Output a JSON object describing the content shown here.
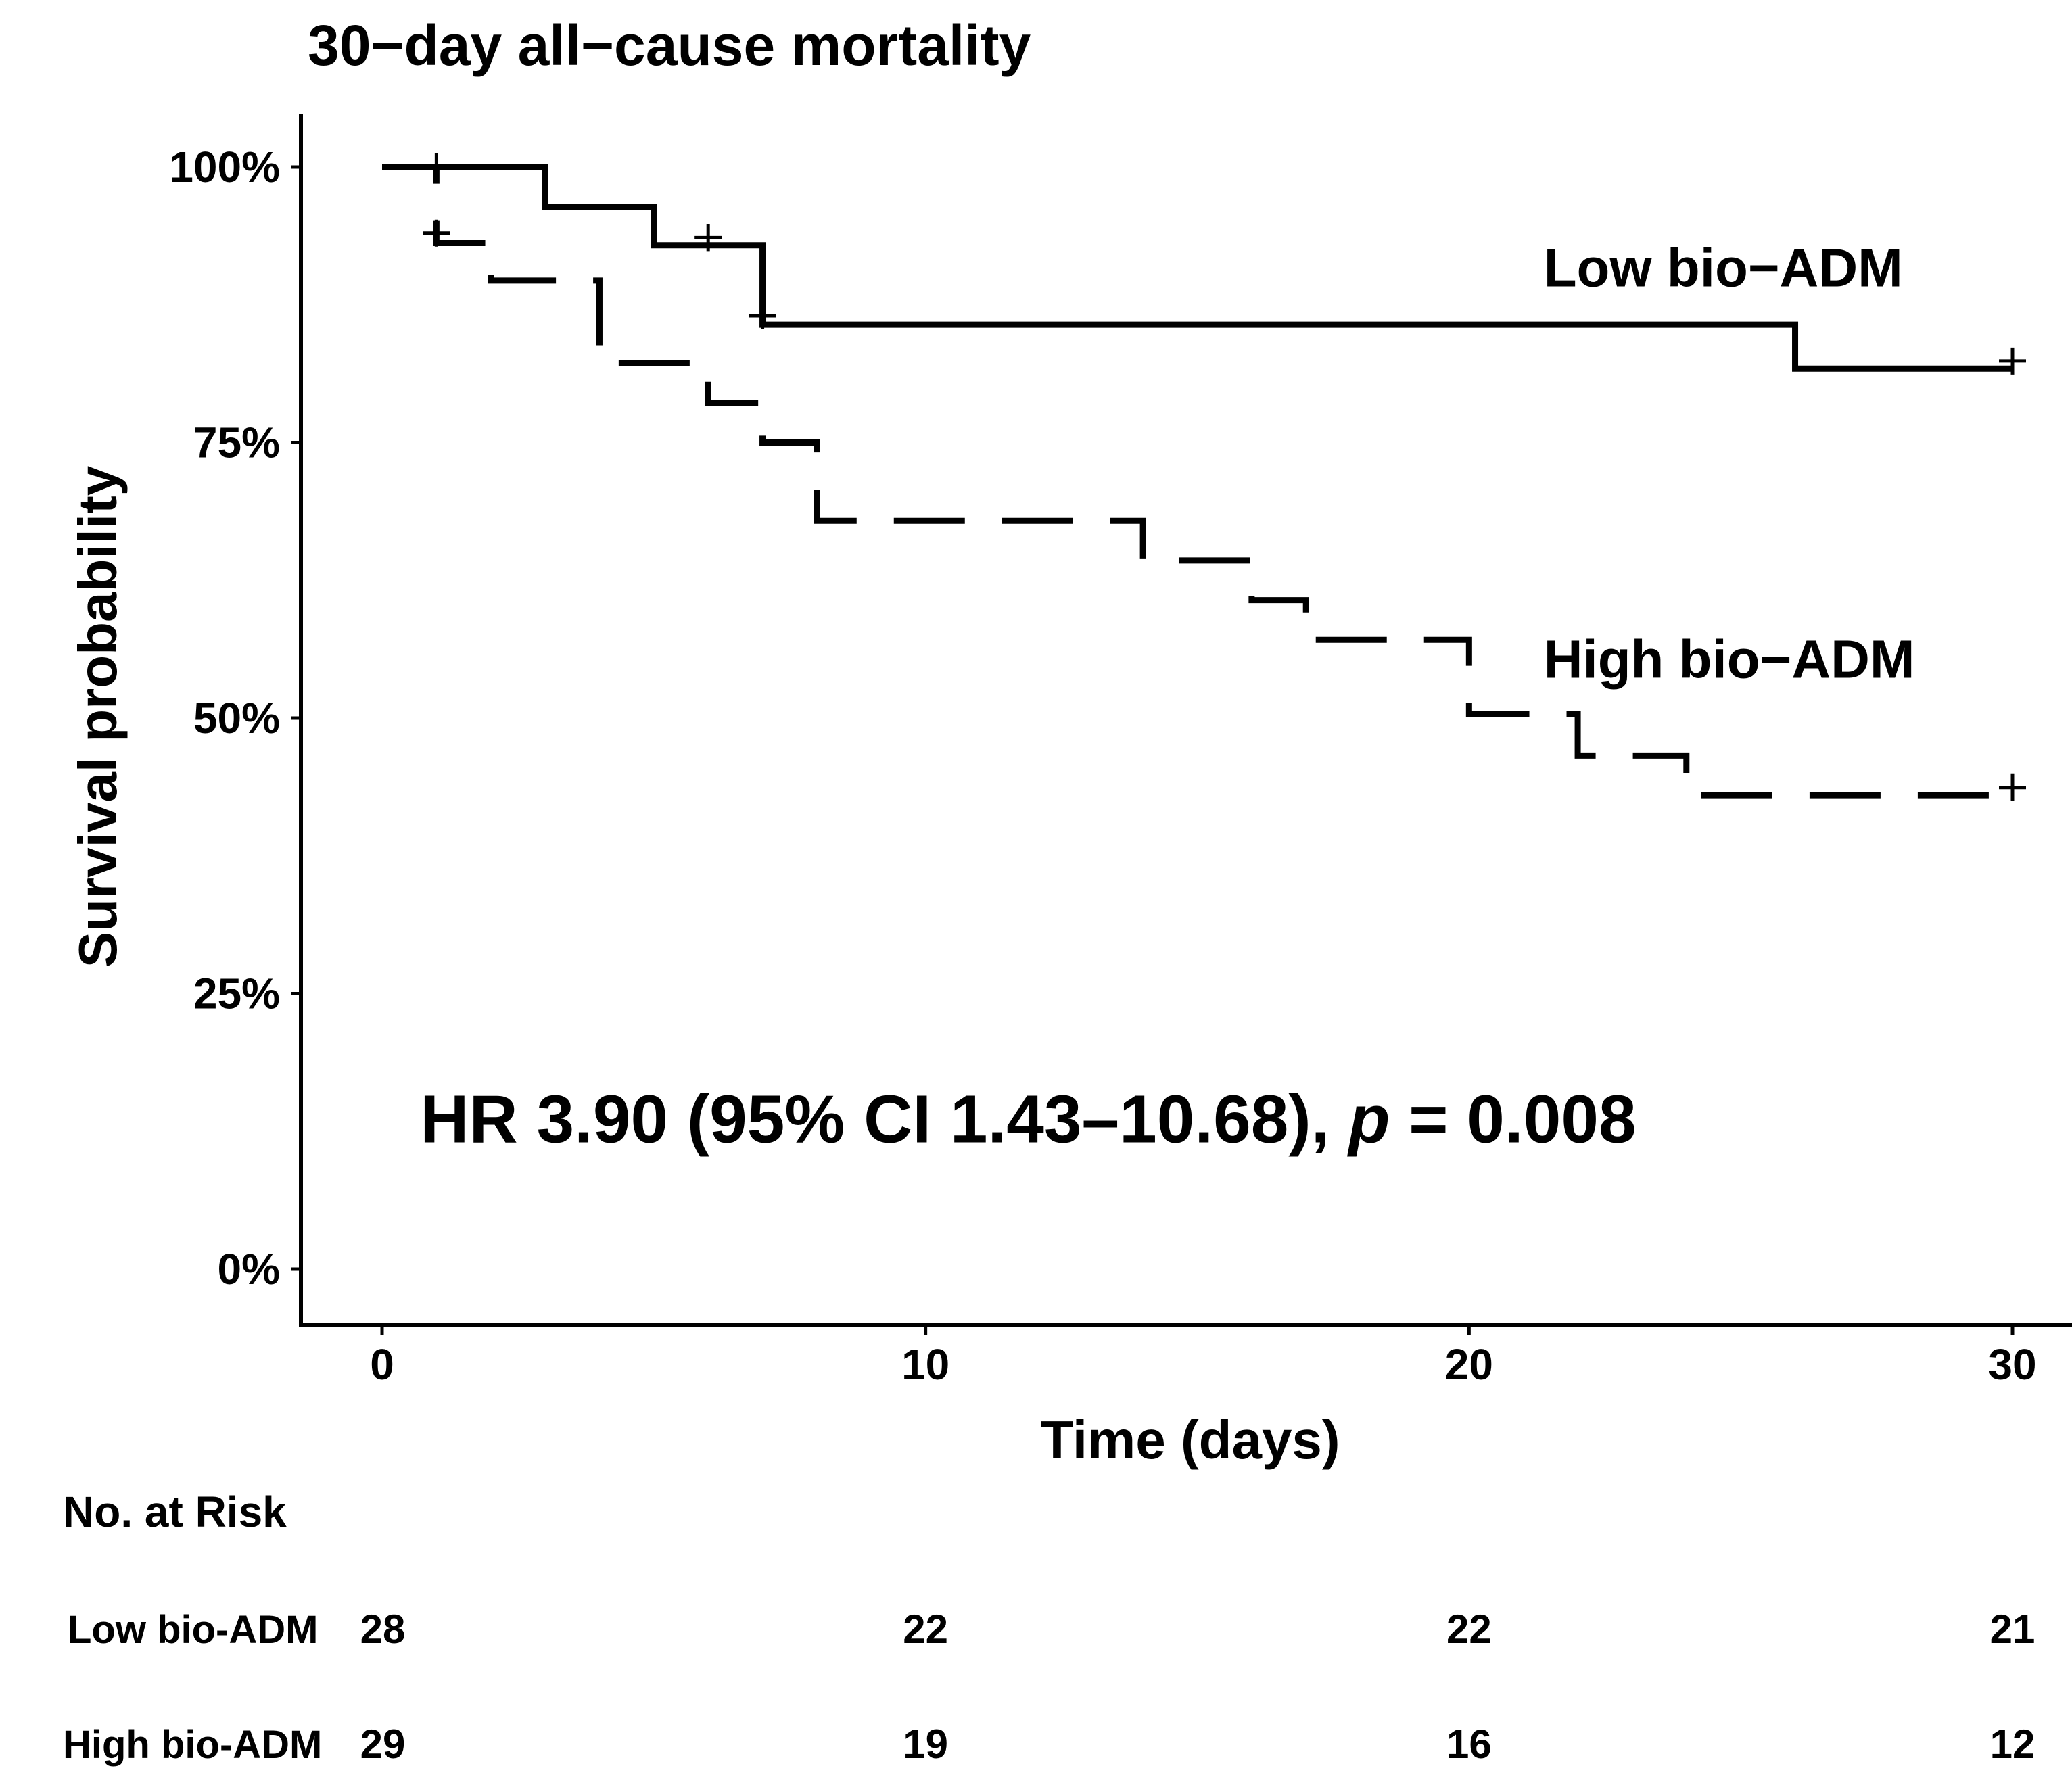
{
  "chart_data": {
    "type": "line",
    "subtype": "kaplan-meier",
    "title": "30−day all−cause mortality",
    "xlabel": "Time (days)",
    "ylabel": "Survival probability",
    "xlim": [
      0,
      30
    ],
    "ylim": [
      0,
      1
    ],
    "xticks": [
      0,
      10,
      20,
      30
    ],
    "xtick_labels": [
      "0",
      "10",
      "20",
      "30"
    ],
    "yticks": [
      0,
      0.25,
      0.5,
      0.75,
      1
    ],
    "ytick_labels": [
      "0%",
      "25%",
      "50%",
      "75%",
      "100%"
    ],
    "grid": false,
    "series": [
      {
        "name": "Low bio−ADM",
        "line_style": "solid",
        "color": "#000000",
        "steps": [
          {
            "t": 0,
            "s": 1.0
          },
          {
            "t": 3,
            "s": 0.964
          },
          {
            "t": 5,
            "s": 0.929
          },
          {
            "t": 7,
            "s": 0.857
          },
          {
            "t": 26,
            "s": 0.817
          }
        ],
        "censor_marks": [
          {
            "t": 1,
            "s": 1.0
          },
          {
            "t": 6,
            "s": 0.936
          },
          {
            "t": 7,
            "s": 0.865
          },
          {
            "t": 30,
            "s": 0.824
          }
        ],
        "end_time": 30,
        "label_position": {
          "t": 21,
          "s": 0.91
        }
      },
      {
        "name": "High bio−ADM",
        "line_style": "dashed",
        "color": "#000000",
        "steps": [
          {
            "t": 0,
            "s": 1.0
          },
          {
            "t": 1,
            "s": 0.931
          },
          {
            "t": 2,
            "s": 0.897
          },
          {
            "t": 4,
            "s": 0.822
          },
          {
            "t": 6,
            "s": 0.786
          },
          {
            "t": 7,
            "s": 0.75
          },
          {
            "t": 8,
            "s": 0.679
          },
          {
            "t": 14,
            "s": 0.643
          },
          {
            "t": 16,
            "s": 0.607
          },
          {
            "t": 17,
            "s": 0.571
          },
          {
            "t": 20,
            "s": 0.504
          },
          {
            "t": 22,
            "s": 0.466
          },
          {
            "t": 24,
            "s": 0.43
          }
        ],
        "censor_marks": [
          {
            "t": 1,
            "s": 0.94
          },
          {
            "t": 30,
            "s": 0.437
          }
        ],
        "end_time": 30,
        "label_position": {
          "t": 21,
          "s": 0.555
        }
      }
    ],
    "annotation": {
      "prefix": "HR 3.90 (95% CI 1.43–10.68), ",
      "italic": "p",
      "suffix": " = 0.008",
      "position": {
        "t": 0.7,
        "s": 0.115
      }
    },
    "risk_table": {
      "title": "No. at Risk",
      "times": [
        0,
        10,
        20,
        30
      ],
      "rows": [
        {
          "label": "Low bio-ADM",
          "counts": [
            "28",
            "22",
            "22",
            "21"
          ]
        },
        {
          "label": "High bio-ADM",
          "counts": [
            "29",
            "19",
            "16",
            "12"
          ]
        }
      ]
    }
  }
}
